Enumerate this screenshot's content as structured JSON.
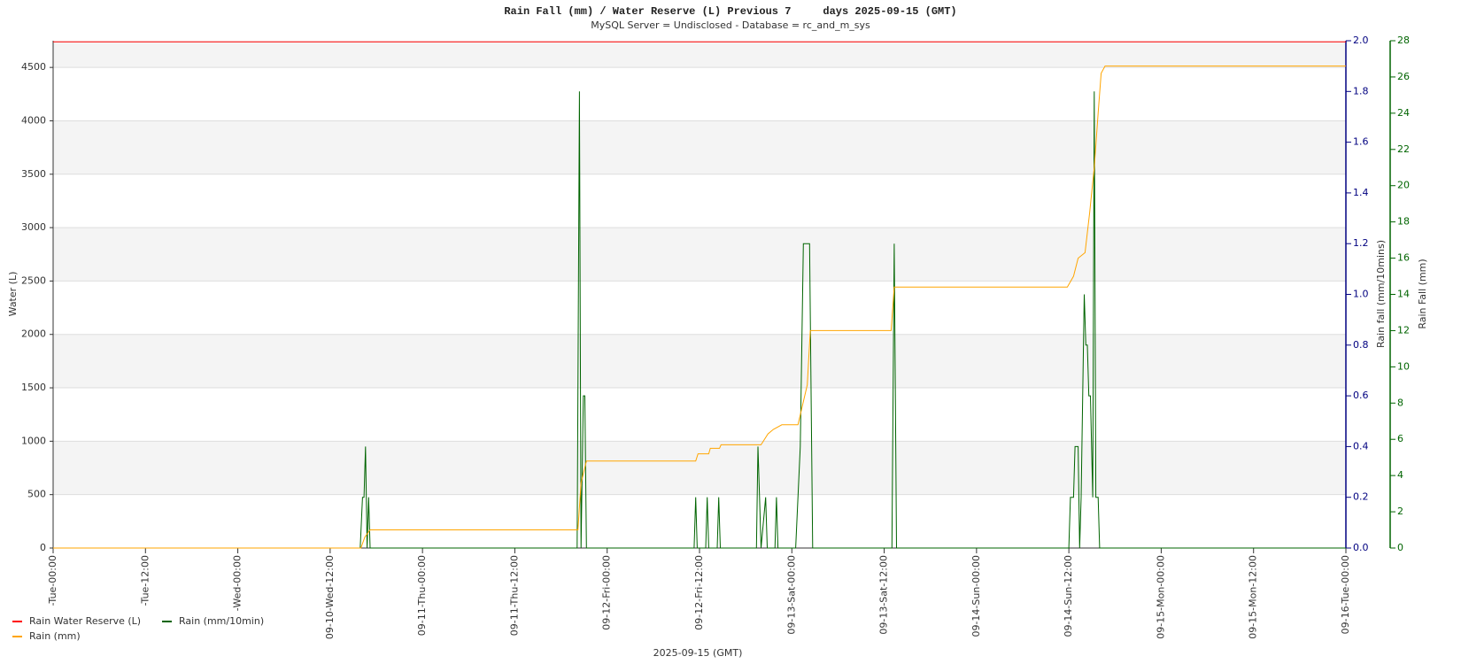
{
  "chart_data": {
    "type": "line",
    "title": "Rain Fall (mm) / Water Reserve (L) Previous 7     days 2025-09-15 (GMT)",
    "subtitle": "MySQL Server = Undisclosed - Database = rc_and_m_sys",
    "xlabel": "2025-09-15 (GMT)",
    "ylabel": "Water (L)",
    "y2label": "Rain fall (mm/10mins)",
    "y3label": "Rain Fall (mm)",
    "xlim": [
      0,
      168
    ],
    "xticks": [
      {
        "value": 0,
        "label": "-Tue-00:00"
      },
      {
        "value": 12,
        "label": "-Tue-12:00"
      },
      {
        "value": 24,
        "label": "-Wed-00:00"
      },
      {
        "value": 36,
        "label": "09-10-Wed-12:00"
      },
      {
        "value": 48,
        "label": "09-11-Thu-00:00"
      },
      {
        "value": 60,
        "label": "09-11-Thu-12:00"
      },
      {
        "value": 72,
        "label": "09-12-Fri-00:00"
      },
      {
        "value": 84,
        "label": "09-12-Fri-12:00"
      },
      {
        "value": 96,
        "label": "09-13-Sat-00:00"
      },
      {
        "value": 108,
        "label": "09-13-Sat-12:00"
      },
      {
        "value": 120,
        "label": "09-14-Sun-00:00"
      },
      {
        "value": 132,
        "label": "09-14-Sun-12:00"
      },
      {
        "value": 144,
        "label": "09-15-Mon-00:00"
      },
      {
        "value": 156,
        "label": "09-15-Mon-12:00"
      },
      {
        "value": 168,
        "label": "09-16-Tue-00:00"
      }
    ],
    "ylim": [
      0,
      4750
    ],
    "yticks": [
      0,
      500,
      1000,
      1500,
      2000,
      2500,
      3000,
      3500,
      4000,
      4500
    ],
    "y2lim": [
      0,
      2
    ],
    "y2ticks": [
      {
        "value": 0,
        "label": "0.0"
      },
      {
        "value": 0.2,
        "label": "0.2"
      },
      {
        "value": 0.4,
        "label": "0.4"
      },
      {
        "value": 0.6,
        "label": "0.6"
      },
      {
        "value": 0.8,
        "label": "0.8"
      },
      {
        "value": 1,
        "label": "1.0"
      },
      {
        "value": 1.2,
        "label": "1.2"
      },
      {
        "value": 1.4,
        "label": "1.4"
      },
      {
        "value": 1.6,
        "label": "1.6"
      },
      {
        "value": 1.8,
        "label": "1.8"
      },
      {
        "value": 2,
        "label": "2.0"
      }
    ],
    "y2color": "#000080",
    "y3lim": [
      0,
      28
    ],
    "y3ticks": [
      0,
      2,
      4,
      6,
      8,
      10,
      12,
      14,
      16,
      18,
      20,
      22,
      24,
      26,
      28
    ],
    "y3color": "#006400",
    "grid": true,
    "bands": "#f4f4f4",
    "legend": "bottom-left",
    "series": [
      {
        "name": "Rain Water Reserve (L)",
        "color": "#ff0000",
        "axis": "y",
        "x": [
          0,
          168
        ],
        "values": [
          4740,
          4740
        ]
      },
      {
        "name": "Rain (mm/10min)",
        "color": "#006400",
        "axis": "y2",
        "x": [
          0,
          39.9,
          40.2,
          40.4,
          40.6,
          40.8,
          41.0,
          41.2,
          68.1,
          68.4,
          68.6,
          68.9,
          69.1,
          69.3,
          83.3,
          83.5,
          83.7,
          84.8,
          85.0,
          85.2,
          86.3,
          86.5,
          86.7,
          91.4,
          91.6,
          91.8,
          92.0,
          92.6,
          92.8,
          93.8,
          94.0,
          94.2,
          96.5,
          97.1,
          97.5,
          98.3,
          98.7,
          109.0,
          109.3,
          109.6,
          132.0,
          132.2,
          132.6,
          132.8,
          133.2,
          133.4,
          133.6,
          134.0,
          134.2,
          134.4,
          134.6,
          134.8,
          135.1,
          135.3,
          135.5,
          135.8,
          136.0,
          168
        ],
        "values": [
          0,
          0,
          0.2,
          0.2,
          0.4,
          0,
          0.2,
          0,
          0,
          1.8,
          0,
          0.6,
          0.6,
          0,
          0,
          0.2,
          0,
          0,
          0.2,
          0,
          0,
          0.2,
          0,
          0,
          0.4,
          0.2,
          0,
          0.2,
          0,
          0,
          0.2,
          0,
          0,
          0.4,
          1.2,
          1.2,
          0,
          0,
          1.2,
          0,
          0,
          0.2,
          0.2,
          0.4,
          0.4,
          0,
          0.2,
          1.0,
          0.8,
          0.8,
          0.6,
          0.6,
          0.2,
          1.8,
          0.2,
          0.2,
          0,
          0
        ]
      },
      {
        "name": "Rain (mm)",
        "color": "#ffa500",
        "axis": "y3",
        "x": [
          0,
          40.0,
          40.5,
          41.2,
          68.2,
          68.6,
          69.3,
          83.5,
          83.8,
          85.2,
          85.4,
          86.6,
          86.8,
          92.0,
          92.9,
          93.6,
          94.7,
          96.8,
          98.0,
          98.4,
          108.9,
          109.3,
          131.8,
          132.6,
          133.2,
          134.1,
          134.7,
          135.3,
          135.8,
          136.2,
          136.7,
          168
        ],
        "values": [
          0,
          0,
          0.6,
          1.0,
          1.0,
          3.6,
          4.8,
          4.8,
          5.2,
          5.2,
          5.5,
          5.5,
          5.7,
          5.7,
          6.3,
          6.55,
          6.8,
          6.8,
          9.0,
          12.0,
          12.0,
          14.4,
          14.4,
          15.0,
          16.0,
          16.3,
          18.5,
          21.0,
          24.0,
          26.2,
          26.6,
          26.6
        ]
      }
    ]
  }
}
